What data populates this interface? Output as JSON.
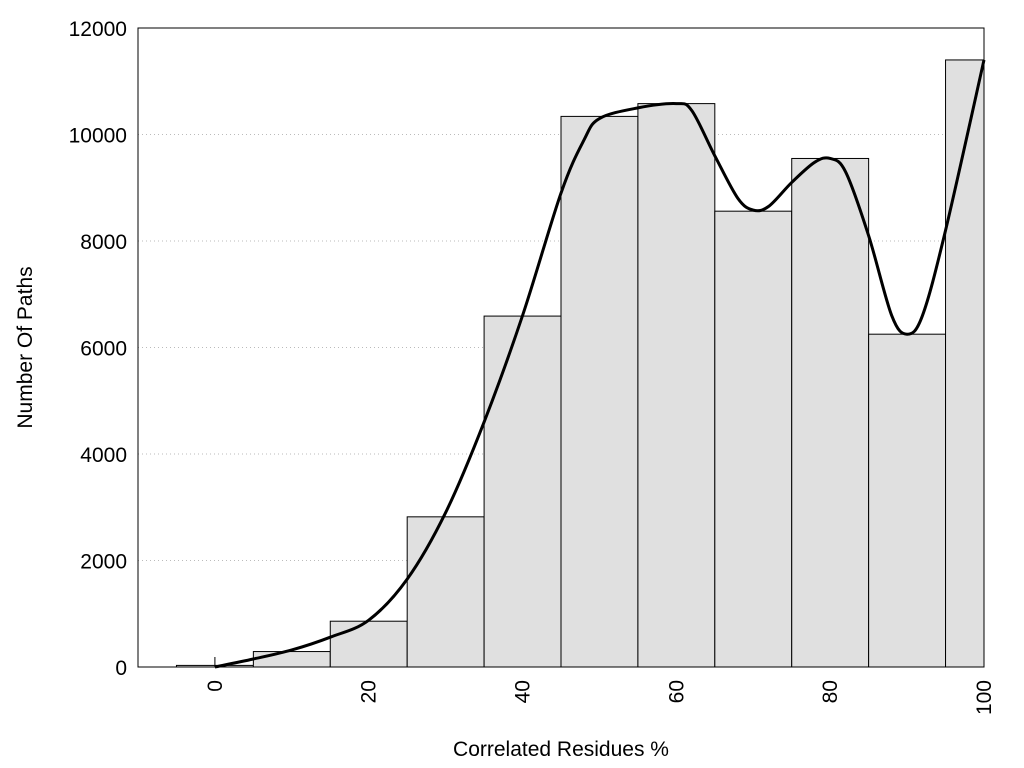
{
  "chart_data": {
    "type": "bar",
    "subtype": "histogram",
    "xlabel": "Correlated Residues %",
    "ylabel": "Number Of Paths",
    "xlim": [
      -10,
      100
    ],
    "ylim": [
      0,
      12000
    ],
    "x_ticks": [
      "0",
      "20",
      "40",
      "60",
      "80",
      "100"
    ],
    "y_ticks": [
      "0",
      "2000",
      "4000",
      "6000",
      "8000",
      "10000",
      "12000"
    ],
    "grid": "horizontal dotted",
    "legend": "none",
    "bar_color": "#e0e0e0",
    "bins": [
      {
        "start": -5,
        "end": 5,
        "value": 30
      },
      {
        "start": 5,
        "end": 15,
        "value": 290
      },
      {
        "start": 15,
        "end": 25,
        "value": 860
      },
      {
        "start": 25,
        "end": 35,
        "value": 2820
      },
      {
        "start": 35,
        "end": 45,
        "value": 6590
      },
      {
        "start": 45,
        "end": 55,
        "value": 10340
      },
      {
        "start": 55,
        "end": 65,
        "value": 10580
      },
      {
        "start": 65,
        "end": 75,
        "value": 8560
      },
      {
        "start": 75,
        "end": 85,
        "value": 9550
      },
      {
        "start": 85,
        "end": 95,
        "value": 6250
      },
      {
        "start": 95,
        "end": 100,
        "value": 11400
      }
    ],
    "curve": {
      "x": [
        0,
        5,
        10,
        15,
        20,
        25,
        30,
        35,
        40,
        45,
        48,
        50,
        55,
        60,
        62,
        65,
        68,
        70,
        72,
        75,
        78,
        80,
        82,
        85,
        88,
        90,
        92,
        95,
        100
      ],
      "y": [
        0,
        150,
        320,
        560,
        880,
        1650,
        2900,
        4600,
        6600,
        8900,
        9900,
        10300,
        10500,
        10580,
        10450,
        9600,
        8800,
        8580,
        8650,
        9100,
        9480,
        9550,
        9300,
        8100,
        6600,
        6250,
        6600,
        8200,
        11400
      ]
    }
  }
}
